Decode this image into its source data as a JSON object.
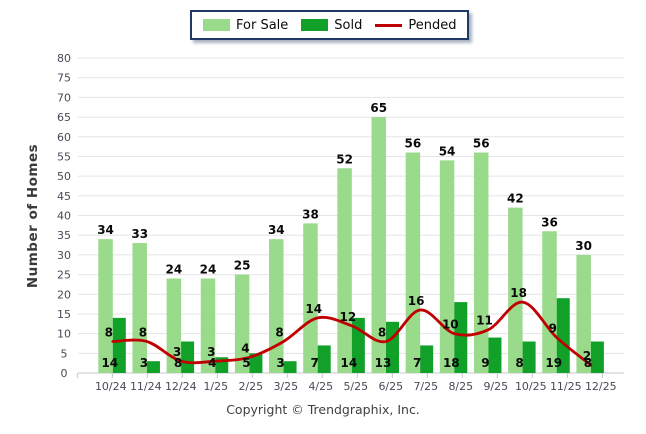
{
  "legend": {
    "items": [
      {
        "label": "For Sale",
        "color": "#9ADB8B",
        "swatch": "rect"
      },
      {
        "label": "Sold",
        "color": "#11A028",
        "swatch": "rect"
      },
      {
        "label": "Pended",
        "color": "#C00000",
        "swatch": "line"
      }
    ]
  },
  "footer": {
    "copyright": "Copyright © Trendgraphix, Inc."
  },
  "chart_data": {
    "type": "bar+line",
    "categories": [
      "10/24",
      "11/24",
      "12/24",
      "1/25",
      "2/25",
      "3/25",
      "4/25",
      "5/25",
      "6/25",
      "7/25",
      "8/25",
      "9/25",
      "10/25",
      "11/25",
      "12/25"
    ],
    "series": [
      {
        "name": "For Sale",
        "type": "bar",
        "color": "#9ADB8B",
        "values": [
          34,
          33,
          24,
          24,
          25,
          34,
          38,
          52,
          65,
          56,
          54,
          56,
          42,
          36,
          30
        ]
      },
      {
        "name": "Sold",
        "type": "bar",
        "color": "#11A028",
        "values": [
          14,
          3,
          8,
          4,
          5,
          3,
          7,
          14,
          13,
          7,
          18,
          9,
          8,
          19,
          8
        ]
      },
      {
        "name": "Pended",
        "type": "line",
        "color": "#C00000",
        "values": [
          8,
          8,
          3,
          3,
          4,
          8,
          14,
          12,
          8,
          16,
          10,
          11,
          18,
          9,
          2
        ]
      }
    ],
    "title": "",
    "xlabel": "",
    "ylabel": "Number of Homes",
    "ylim": [
      0,
      80
    ],
    "ytick_step": 5,
    "yticks": [
      0,
      5,
      10,
      15,
      20,
      25,
      30,
      35,
      40,
      45,
      50,
      55,
      60,
      65,
      70,
      75,
      80
    ],
    "grid": true,
    "legend_position": "top",
    "data_labels": true
  }
}
